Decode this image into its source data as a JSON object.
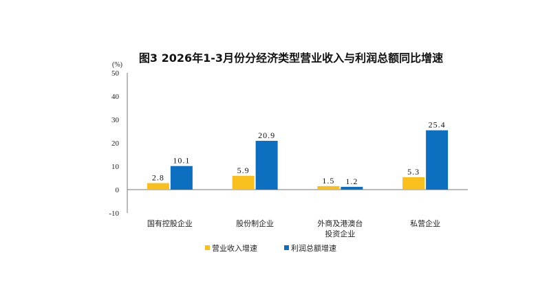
{
  "chart_data": {
    "type": "bar",
    "title": "图3 2026年1-3月份分经济类型营业收入与利润总额同比增速",
    "ylabel": "(%)",
    "ylim": [
      -10,
      50
    ],
    "yticks": [
      -10,
      0,
      10,
      20,
      30,
      40,
      50
    ],
    "categories": [
      [
        "国有控股企业"
      ],
      [
        "股份制企业"
      ],
      [
        "外商及港澳台",
        "投资企业"
      ],
      [
        "私营企业"
      ]
    ],
    "series": [
      {
        "name": "营业收入增速",
        "color": "#F9BF1D",
        "values": [
          2.8,
          5.9,
          1.5,
          5.3
        ]
      },
      {
        "name": "利润总额增速",
        "color": "#0C6FBF",
        "values": [
          10.1,
          20.9,
          1.2,
          25.4
        ]
      }
    ],
    "legend": "bottom"
  }
}
